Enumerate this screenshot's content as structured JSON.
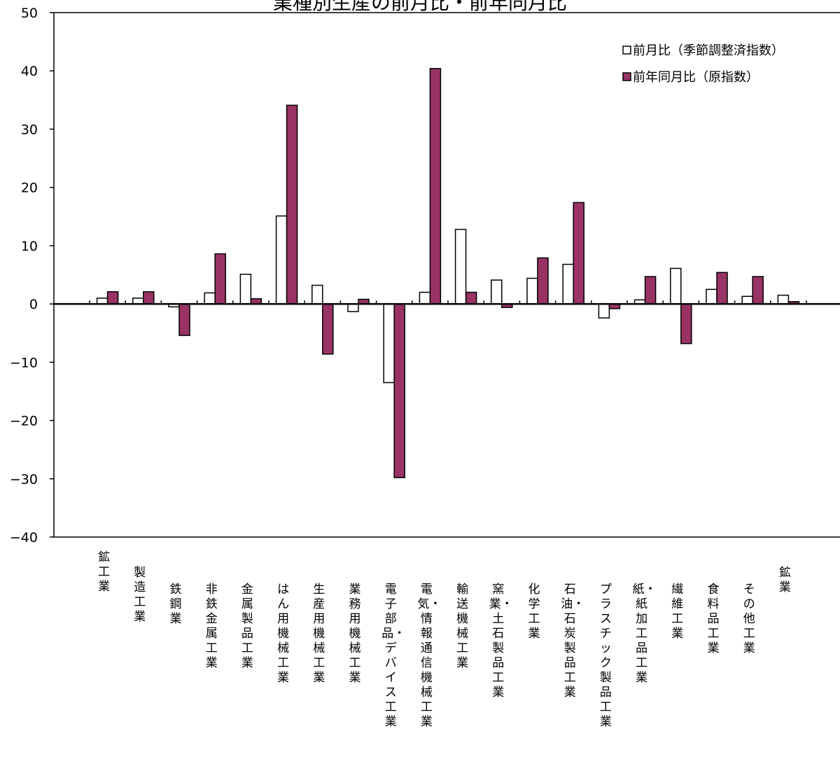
{
  "chart_data": {
    "type": "bar",
    "title": "業種別生産の前月比・前年同月比",
    "ylim": [
      -40,
      50
    ],
    "yticks": [
      50,
      40,
      30,
      20,
      10,
      0,
      -10,
      -20,
      -30,
      -40
    ],
    "ytick_labels": [
      "50",
      "40",
      "30",
      "20",
      "10",
      "0",
      "−10",
      "−20",
      "−30",
      "−40"
    ],
    "grid": false,
    "legend_position": "top-right",
    "categories": [
      "鉱工業",
      "製造工業",
      "鉄鋼業",
      "非鉄金属工業",
      "金属製品工業",
      "はん用機械工業",
      "生産用機械工業",
      "業務用機械工業",
      "電子部品・デバイス工業",
      "電気・情報通信機械工業",
      "輸送機械工業",
      "窯業・土石製品工業",
      "化学工業",
      "石油・石炭製品工業",
      "プラスチック製品工業",
      "紙・紙加工品工業",
      "繊維工業",
      "食料品工業",
      "その他工業",
      "鉱業"
    ],
    "series": [
      {
        "name": "前月比（季節調整済指数）",
        "color": "#ffffff",
        "values": [
          1.0,
          1.0,
          -0.5,
          1.9,
          5.1,
          15.1,
          3.2,
          -1.3,
          -13.5,
          2.0,
          12.8,
          4.1,
          4.4,
          6.8,
          -2.4,
          0.7,
          6.1,
          2.5,
          1.3,
          1.5
        ]
      },
      {
        "name": "前年同月比（原指数）",
        "color": "#993366",
        "values": [
          2.1,
          2.1,
          -5.4,
          8.6,
          0.9,
          34.1,
          -8.6,
          0.8,
          -29.8,
          40.4,
          2.0,
          -0.6,
          7.9,
          17.4,
          -0.8,
          4.7,
          -6.8,
          5.4,
          4.7,
          0.4
        ]
      }
    ]
  }
}
